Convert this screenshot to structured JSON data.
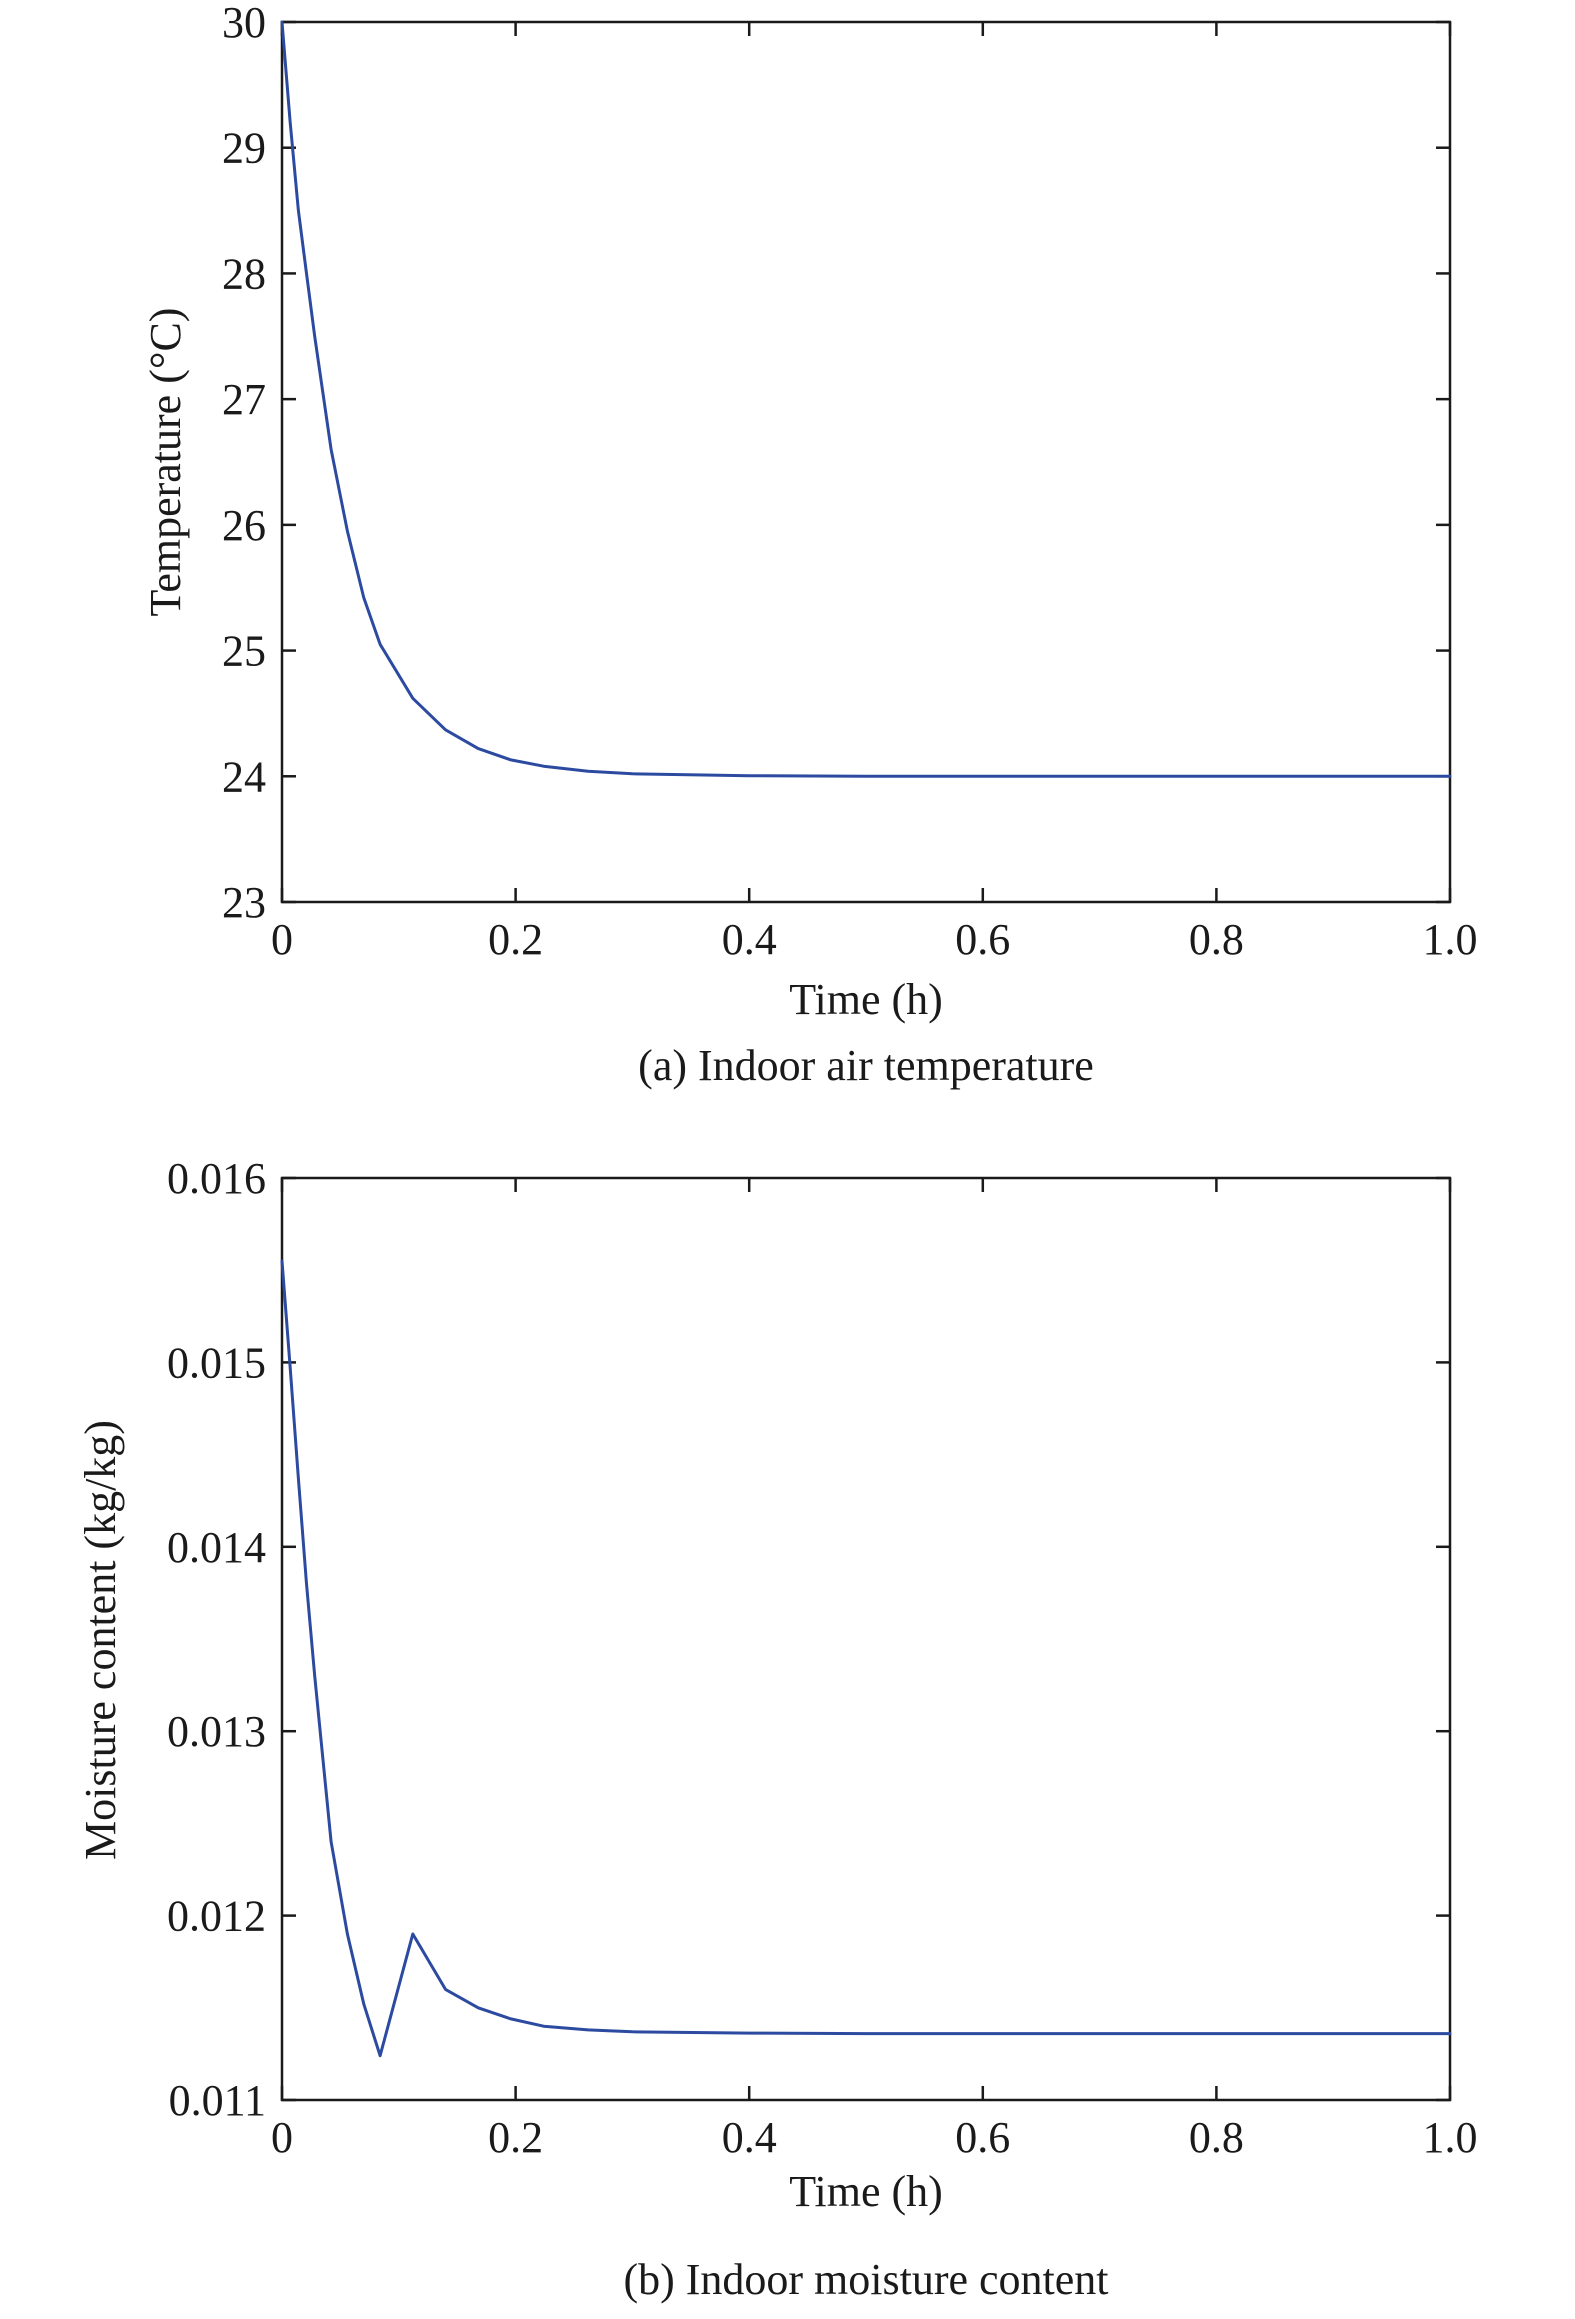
{
  "chart_data": [
    {
      "type": "line",
      "caption": "(a) Indoor air temperature",
      "xlabel": "Time (h)",
      "ylabel": "Temperature (°C)",
      "xlim": [
        0,
        1.0
      ],
      "ylim": [
        23,
        30
      ],
      "xticks": [
        "0",
        "0.2",
        "0.4",
        "0.6",
        "0.8",
        "1.0"
      ],
      "yticks": [
        "23",
        "24",
        "25",
        "26",
        "27",
        "28",
        "29",
        "30"
      ],
      "grid": false,
      "series": [
        {
          "color": "#2c4aa0",
          "x": [
            0,
            0.007,
            0.014,
            0.021,
            0.028,
            0.035,
            0.042,
            0.056,
            0.07,
            0.084,
            0.112,
            0.14,
            0.168,
            0.196,
            0.224,
            0.262,
            0.3,
            0.4,
            0.5,
            0.6,
            0.7,
            0.8,
            0.9,
            1.0
          ],
          "y": [
            30.0,
            29.2,
            28.5,
            28.0,
            27.5,
            27.05,
            26.6,
            25.95,
            25.42,
            25.05,
            24.62,
            24.37,
            24.22,
            24.13,
            24.08,
            24.04,
            24.02,
            24.005,
            24.0,
            24.0,
            24.0,
            24.0,
            24.0,
            24.0
          ]
        }
      ]
    },
    {
      "type": "line",
      "caption": "(b) Indoor moisture content",
      "xlabel": "Time (h)",
      "ylabel": "Moisture content (kg/kg)",
      "xlim": [
        0,
        1.0
      ],
      "ylim": [
        0.011,
        0.016
      ],
      "xticks": [
        "0",
        "0.2",
        "0.4",
        "0.6",
        "0.8",
        "1.0"
      ],
      "yticks": [
        "0.011",
        "0.012",
        "0.013",
        "0.014",
        "0.015",
        "0.016"
      ],
      "grid": false,
      "series": [
        {
          "color": "#2c4aa0",
          "x": [
            0,
            0.007,
            0.014,
            0.021,
            0.028,
            0.035,
            0.042,
            0.056,
            0.07,
            0.084,
            0.112,
            0.14,
            0.168,
            0.196,
            0.224,
            0.262,
            0.3,
            0.4,
            0.5,
            0.6,
            0.7,
            0.8,
            0.9,
            1.0
          ],
          "y": [
            0.01555,
            0.01497,
            0.01437,
            0.0138,
            0.0133,
            0.01285,
            0.0124,
            0.0119,
            0.01152,
            0.01124,
            0.0119,
            0.0116,
            0.0115,
            0.01144,
            0.0114,
            0.01138,
            0.01137,
            0.011363,
            0.01136,
            0.01136,
            0.01136,
            0.01136,
            0.01136,
            0.01136
          ]
        }
      ]
    }
  ]
}
